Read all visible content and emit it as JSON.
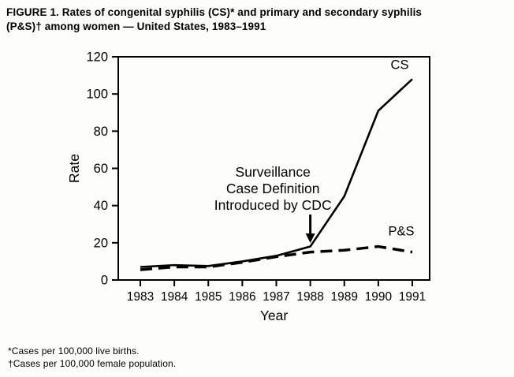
{
  "figure": {
    "title_line1": "FIGURE 1. Rates of congenital syphilis (CS)* and primary and secondary syphilis",
    "title_line2": "(P&S)† among women — United States, 1983–1991"
  },
  "footnotes": {
    "line1": "*Cases per 100,000 live births.",
    "line2": "†Cases per 100,000 female population."
  },
  "chart_data": {
    "type": "line",
    "title": "",
    "xlabel": "Year",
    "ylabel": "Rate",
    "x": [
      1983,
      1984,
      1985,
      1986,
      1987,
      1988,
      1989,
      1990,
      1991
    ],
    "ylim": [
      0,
      120
    ],
    "yticks": [
      0,
      20,
      40,
      60,
      80,
      100,
      120
    ],
    "grid": false,
    "legend_position": "inline-labels",
    "colors": {
      "line": "#000000",
      "background": "#fdfdfb"
    },
    "series": [
      {
        "name": "CS",
        "style": "solid",
        "values": [
          7,
          8,
          7.5,
          10,
          13,
          18,
          45,
          91,
          108
        ]
      },
      {
        "name": "P&S",
        "style": "dashed",
        "values": [
          5.5,
          7,
          7,
          9.5,
          12.5,
          15,
          16,
          18,
          15
        ]
      }
    ],
    "annotation": {
      "lines": [
        "Surveillance",
        "Case Definition",
        "Introduced by CDC"
      ],
      "text_center_year": 1986.9,
      "arrow_year": 1988
    }
  }
}
